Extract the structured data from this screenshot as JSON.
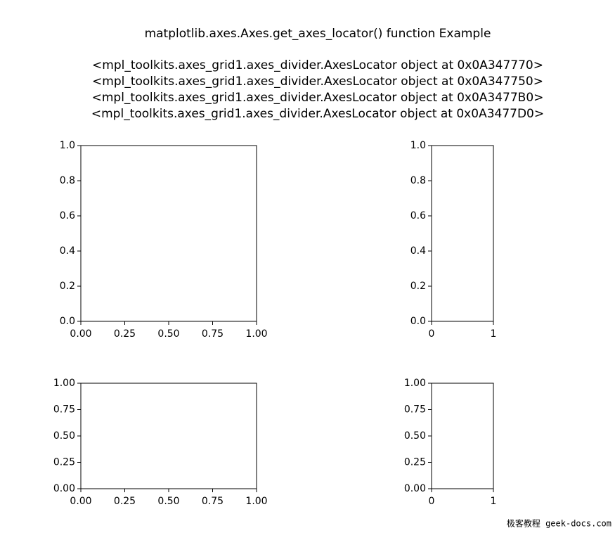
{
  "figure": {
    "title": "matplotlib.axes.Axes.get_axes_locator() function Example",
    "lines": [
      "<mpl_toolkits.axes_grid1.axes_divider.AxesLocator object at 0x0A347770>",
      "<mpl_toolkits.axes_grid1.axes_divider.AxesLocator object at 0x0A347750>",
      "<mpl_toolkits.axes_grid1.axes_divider.AxesLocator object at 0x0A3477B0>",
      "<mpl_toolkits.axes_grid1.axes_divider.AxesLocator object at 0x0A3477D0>"
    ]
  },
  "watermark": "极客教程 geek-docs.com",
  "chart_data": [
    {
      "type": "line",
      "xlim": [
        0,
        1
      ],
      "ylim": [
        0,
        1
      ],
      "xticks": [
        {
          "value": 0,
          "label": "0.00"
        },
        {
          "value": 0.25,
          "label": "0.25"
        },
        {
          "value": 0.5,
          "label": "0.50"
        },
        {
          "value": 0.75,
          "label": "0.75"
        },
        {
          "value": 1,
          "label": "1.00"
        }
      ],
      "yticks": [
        {
          "value": 0,
          "label": "0.0"
        },
        {
          "value": 0.2,
          "label": "0.2"
        },
        {
          "value": 0.4,
          "label": "0.4"
        },
        {
          "value": 0.6,
          "label": "0.6"
        },
        {
          "value": 0.8,
          "label": "0.8"
        },
        {
          "value": 1,
          "label": "1.0"
        }
      ]
    },
    {
      "type": "line",
      "xlim": [
        0,
        1
      ],
      "ylim": [
        0,
        1
      ],
      "xticks": [
        0,
        1
      ],
      "yticks": [
        {
          "value": 0,
          "label": "0.0"
        },
        {
          "value": 0.2,
          "label": "0.2"
        },
        {
          "value": 0.4,
          "label": "0.4"
        },
        {
          "value": 0.6,
          "label": "0.6"
        },
        {
          "value": 0.8,
          "label": "0.8"
        },
        {
          "value": 1,
          "label": "1.0"
        }
      ]
    },
    {
      "type": "line",
      "xlim": [
        0,
        1
      ],
      "ylim": [
        0,
        1
      ],
      "xticks": [
        {
          "value": 0,
          "label": "0.00"
        },
        {
          "value": 0.25,
          "label": "0.25"
        },
        {
          "value": 0.5,
          "label": "0.50"
        },
        {
          "value": 0.75,
          "label": "0.75"
        },
        {
          "value": 1,
          "label": "1.00"
        }
      ],
      "yticks": [
        {
          "value": 0,
          "label": "0.00"
        },
        {
          "value": 0.25,
          "label": "0.25"
        },
        {
          "value": 0.5,
          "label": "0.50"
        },
        {
          "value": 0.75,
          "label": "0.75"
        },
        {
          "value": 1,
          "label": "1.00"
        }
      ]
    },
    {
      "type": "line",
      "xlim": [
        0,
        1
      ],
      "ylim": [
        0,
        1
      ],
      "xticks": [
        0,
        1
      ],
      "yticks": [
        {
          "value": 0,
          "label": "0.00"
        },
        {
          "value": 0.25,
          "label": "0.25"
        },
        {
          "value": 0.5,
          "label": "0.50"
        },
        {
          "value": 0.75,
          "label": "0.75"
        },
        {
          "value": 1,
          "label": "1.00"
        }
      ]
    }
  ]
}
